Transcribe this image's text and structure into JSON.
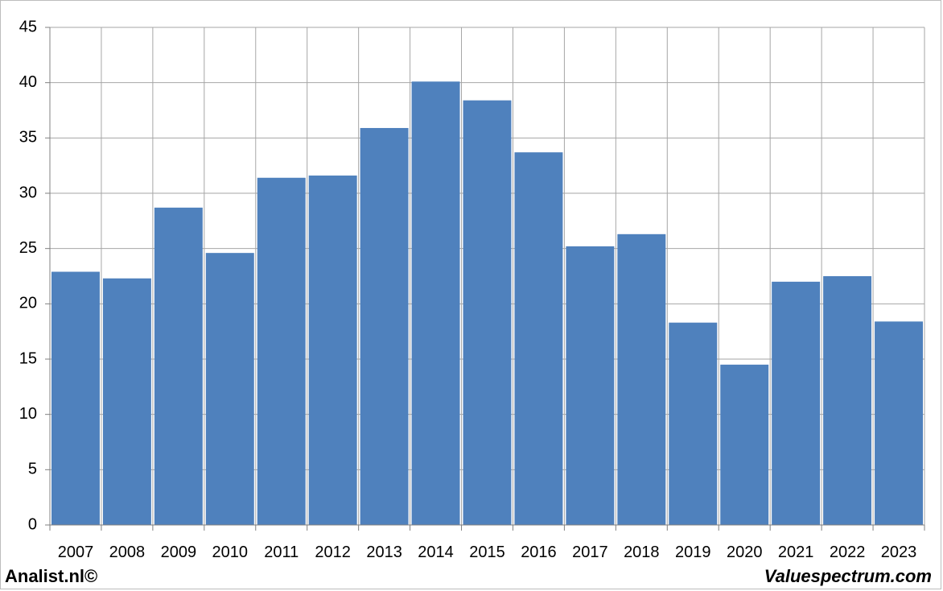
{
  "chart_data": {
    "type": "bar",
    "title": "",
    "xlabel": "",
    "ylabel": "",
    "categories": [
      "2007",
      "2008",
      "2009",
      "2010",
      "2011",
      "2012",
      "2013",
      "2014",
      "2015",
      "2016",
      "2017",
      "2018",
      "2019",
      "2020",
      "2021",
      "2022",
      "2023"
    ],
    "values": [
      22.9,
      22.3,
      28.7,
      24.6,
      31.4,
      31.6,
      35.9,
      40.1,
      38.4,
      33.7,
      25.2,
      26.3,
      18.3,
      14.5,
      22.0,
      22.5,
      18.4
    ],
    "ylim": [
      0,
      45
    ],
    "yticks": [
      "0",
      "5",
      "10",
      "15",
      "20",
      "25",
      "30",
      "35",
      "40",
      "45"
    ],
    "grid": true,
    "bar_color": "#4f81bd",
    "grid_color": "#a6a6a6"
  },
  "footer": {
    "left": "Analist.nl©",
    "right": "Valuespectrum.com"
  }
}
